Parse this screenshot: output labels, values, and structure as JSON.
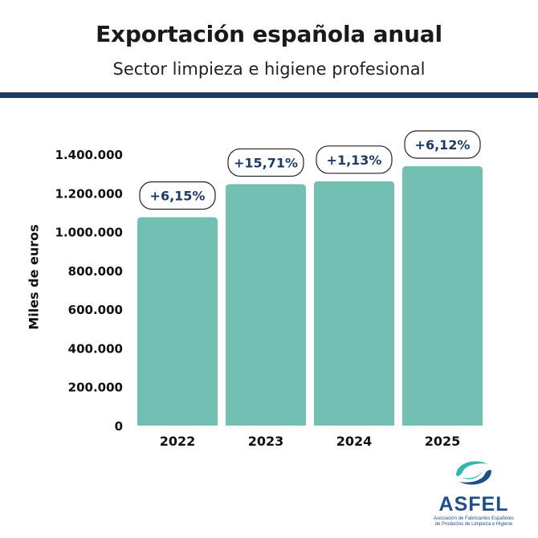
{
  "title": "Exportación española anual",
  "subtitle": "Sector limpieza e higiene profesional",
  "colors": {
    "bar": "#74bfb3",
    "navy": "#1b3a5c",
    "label_text": "#1f3d63",
    "label_border": "#222222",
    "axis_text": "#111111",
    "logo_teal": "#35b6ad",
    "logo_navy": "#1f4f86"
  },
  "chart_data": {
    "type": "bar",
    "categories": [
      "2022",
      "2023",
      "2024",
      "2025"
    ],
    "values": [
      1075000,
      1245000,
      1260000,
      1338000
    ],
    "data_labels": [
      "+6,15%",
      "+15,71%",
      "+1,13%",
      "+6,12%"
    ],
    "ylabel": "Miles de euros",
    "ylim": [
      0,
      1400000
    ],
    "yticks": [
      0,
      200000,
      400000,
      600000,
      800000,
      1000000,
      1200000,
      1400000
    ],
    "ytick_labels": [
      "0",
      "200.000",
      "400.000",
      "600.000",
      "800.000",
      "1.000.000",
      "1.200.000",
      "1.400.000"
    ],
    "grid": false,
    "legend": "none"
  },
  "logo": {
    "name": "ASFEL",
    "line1": "Asociación de Fabricantes Españoles",
    "line2": "de Productos de Limpieza e Higiene",
    "icon": "asfel-swirl-icon"
  }
}
